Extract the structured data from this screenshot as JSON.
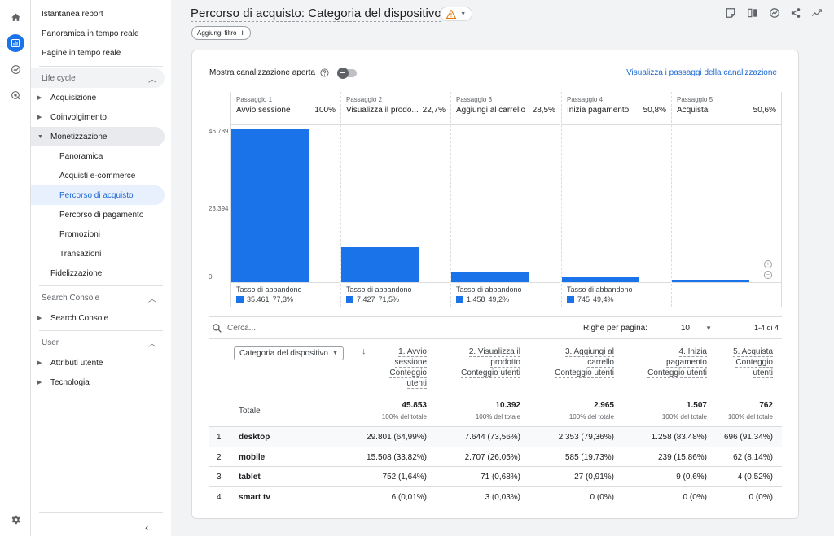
{
  "icons": {
    "home": "home-icon",
    "reports": "bar-chart-icon",
    "explore": "explore-icon",
    "advertising": "target-icon",
    "settings": "gear-icon"
  },
  "sidebar": {
    "top_items": [
      "Istantanea report",
      "Panoramica in tempo reale",
      "Pagine in tempo reale"
    ],
    "lifecycle_title": "Life cycle",
    "lifecycle_items": [
      "Acquisizione",
      "Coinvolgimento",
      "Monetizzazione"
    ],
    "monet_sub": [
      "Panoramica",
      "Acquisti e-commerce",
      "Percorso di acquisto",
      "Percorso di pagamento",
      "Promozioni",
      "Transazioni"
    ],
    "fidelizzazione": "Fidelizzazione",
    "search_console_title": "Search Console",
    "search_console_item": "Search Console",
    "user_title": "User",
    "user_items": [
      "Attributi utente",
      "Tecnologia"
    ]
  },
  "header": {
    "title": "Percorso di acquisto: Categoria del dispositivo",
    "filter_label": "Aggiungi filtro"
  },
  "card": {
    "toggle_label": "Mostra canalizzazione aperta",
    "link": "Visualizza i passaggi della canalizzazione",
    "y_ticks": [
      "46.789",
      "23.394",
      "0"
    ]
  },
  "chart_data": {
    "type": "bar",
    "categories": [
      "Avvio sessione",
      "Visualizza il prodo...",
      "Aggiungi al carrello",
      "Inizia pagamento",
      "Acquista"
    ],
    "values": [
      45853,
      10392,
      2965,
      1507,
      762
    ],
    "ylim": [
      0,
      46789
    ],
    "steps": [
      {
        "step": "Passaggio 1",
        "name": "Avvio sessione",
        "pct": "100%",
        "drop_label": "Tasso di abbandono",
        "drop_value": "35.461",
        "drop_pct": "77,3%"
      },
      {
        "step": "Passaggio 2",
        "name": "Visualizza il prodo...",
        "pct": "22,7%",
        "drop_label": "Tasso di abbandono",
        "drop_value": "7.427",
        "drop_pct": "71,5%"
      },
      {
        "step": "Passaggio 3",
        "name": "Aggiungi al carrello",
        "pct": "28,5%",
        "drop_label": "Tasso di abbandono",
        "drop_value": "1.458",
        "drop_pct": "49,2%"
      },
      {
        "step": "Passaggio 4",
        "name": "Inizia pagamento",
        "pct": "50,8%",
        "drop_label": "Tasso di abbandono",
        "drop_value": "745",
        "drop_pct": "49,4%"
      },
      {
        "step": "Passaggio 5",
        "name": "Acquista",
        "pct": "50,6%",
        "drop_label": "",
        "drop_value": "",
        "drop_pct": ""
      }
    ]
  },
  "table": {
    "search_placeholder": "Cerca...",
    "rows_per_page_label": "Righe per pagina:",
    "rows_per_page": "10",
    "pager": "1-4 di 4",
    "dimension": "Categoria del dispositivo",
    "headers": [
      [
        "1. Avvio",
        "sessione",
        "Conteggio",
        "utenti"
      ],
      [
        "2. Visualizza il",
        "prodotto",
        "Conteggio utenti"
      ],
      [
        "3. Aggiungi al",
        "carrello",
        "Conteggio utenti"
      ],
      [
        "4. Inizia",
        "pagamento",
        "Conteggio utenti"
      ],
      [
        "5. Acquista",
        "Conteggio",
        "utenti"
      ]
    ],
    "total_label": "Totale",
    "totals": [
      "45.853",
      "10.392",
      "2.965",
      "1.507",
      "762"
    ],
    "total_sub": "100% del totale",
    "rows": [
      {
        "idx": "1",
        "device": "desktop",
        "cells": [
          "29.801 (64,99%)",
          "7.644 (73,56%)",
          "2.353 (79,36%)",
          "1.258 (83,48%)",
          "696 (91,34%)"
        ]
      },
      {
        "idx": "2",
        "device": "mobile",
        "cells": [
          "15.508 (33,82%)",
          "2.707 (26,05%)",
          "585 (19,73%)",
          "239 (15,86%)",
          "62 (8,14%)"
        ]
      },
      {
        "idx": "3",
        "device": "tablet",
        "cells": [
          "752 (1,64%)",
          "71 (0,68%)",
          "27 (0,91%)",
          "9 (0,6%)",
          "4 (0,52%)"
        ]
      },
      {
        "idx": "4",
        "device": "smart tv",
        "cells": [
          "6 (0,01%)",
          "3 (0,03%)",
          "0 (0%)",
          "0 (0%)",
          "0 (0%)"
        ]
      }
    ]
  }
}
